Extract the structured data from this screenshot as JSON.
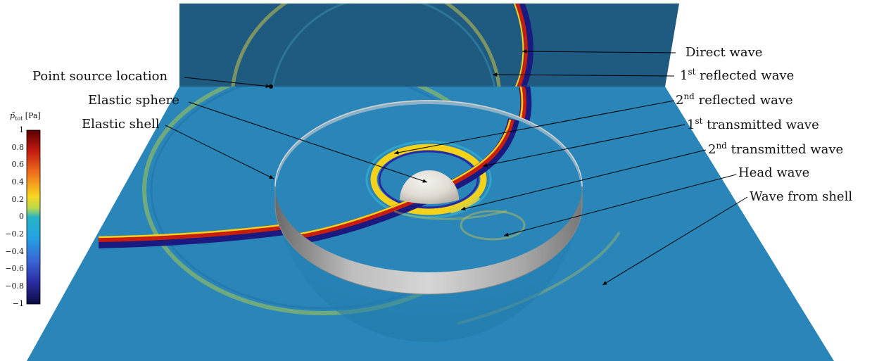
{
  "annotations": {
    "direct_wave": "Direct wave",
    "reflected_1": {
      "ordinal": "1",
      "suffix": "st",
      "text": "reflected wave"
    },
    "reflected_2": {
      "ordinal": "2",
      "suffix": "nd",
      "text": "reflected wave"
    },
    "transmitted_1": {
      "ordinal": "1",
      "suffix": "st",
      "text": "transmitted wave"
    },
    "transmitted_2": {
      "ordinal": "2",
      "suffix": "nd",
      "text": "transmitted wave"
    },
    "head_wave": "Head wave",
    "wave_from_shell": "Wave from shell",
    "point_source": "Point source location",
    "elastic_sphere": "Elastic sphere",
    "elastic_shell": "Elastic shell"
  },
  "colorbar": {
    "symbol": "p̃",
    "subscript": "tot",
    "unit": "[Pa]",
    "ticks": [
      "1",
      "0.8",
      "0.6",
      "0.4",
      "0.2",
      "0",
      "−0.2",
      "−0.4",
      "−0.6",
      "−0.8",
      "−1"
    ],
    "colors": [
      "#7a0a0a",
      "#d8201a",
      "#f07a1c",
      "#f5d21a",
      "#a8d24a",
      "#2aa8c8",
      "#2a9ee0",
      "#3a62d0",
      "#2a2a9a",
      "#141452"
    ]
  },
  "colors": {
    "background_field": "#2a86b8",
    "wall_field": "#1f5a80",
    "shell": "#a8a8a8",
    "sphere": "#e6e2da"
  }
}
